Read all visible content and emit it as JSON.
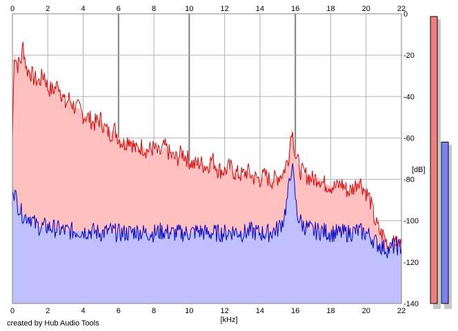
{
  "chart_data": {
    "type": "area",
    "xlabel": "[kHz]",
    "ylabel": "[dB]",
    "xlim": [
      0,
      22
    ],
    "ylim": [
      -140,
      0
    ],
    "x_ticks": [
      0,
      2,
      4,
      6,
      8,
      10,
      12,
      14,
      16,
      18,
      20,
      22
    ],
    "y_ticks": [
      0,
      -20,
      -40,
      -60,
      -80,
      -100,
      -120,
      -140
    ],
    "grid": true,
    "series": [
      {
        "color": "#e00000",
        "fill": "#ffc0c0",
        "x": [
          0,
          0.1,
          0.3,
          0.5,
          0.6,
          0.8,
          1,
          1.2,
          1.5,
          1.8,
          2,
          2.3,
          2.6,
          3,
          3.2,
          3.5,
          3.8,
          4,
          4.3,
          4.6,
          5,
          5.2,
          5.5,
          5.8,
          6,
          6.3,
          6.6,
          7,
          7.3,
          7.6,
          8,
          8.3,
          8.6,
          9,
          9.3,
          9.6,
          10,
          10.3,
          10.6,
          11,
          11.3,
          11.6,
          12,
          12.3,
          12.6,
          13,
          13.3,
          13.6,
          14,
          14.3,
          14.6,
          15,
          15.3,
          15.6,
          15.8,
          16,
          16.3,
          16.6,
          17,
          17.3,
          17.6,
          18,
          18.3,
          18.6,
          19,
          19.3,
          19.6,
          19.9,
          20.2,
          20.5,
          20.8,
          21,
          21.3,
          21.6,
          22
        ],
        "values": [
          -60,
          -19,
          -25,
          -22,
          -15,
          -27,
          -28,
          -31,
          -33,
          -29,
          -36,
          -37,
          -34,
          -44,
          -41,
          -45,
          -46,
          -49,
          -50,
          -53,
          -51,
          -55,
          -58,
          -56,
          -60,
          -63,
          -60,
          -66,
          -64,
          -66,
          -65,
          -68,
          -64,
          -69,
          -70,
          -67,
          -71,
          -73,
          -72,
          -74,
          -70,
          -75,
          -76,
          -74,
          -77,
          -78,
          -76,
          -79,
          -80,
          -78,
          -81,
          -79,
          -77,
          -70,
          -55,
          -68,
          -76,
          -78,
          -80,
          -79,
          -82,
          -83,
          -84,
          -82,
          -86,
          -84,
          -80,
          -85,
          -89,
          -100,
          -106,
          -107,
          -113,
          -111,
          -112
        ]
      },
      {
        "color": "#0000cc",
        "fill": "#c0c0ff",
        "x": [
          0,
          0.1,
          0.3,
          0.5,
          0.7,
          1,
          1.3,
          1.6,
          2,
          2.5,
          3,
          3.5,
          4,
          4.5,
          5,
          5.5,
          6,
          6.5,
          7,
          7.5,
          8,
          8.5,
          9,
          9.5,
          10,
          10.5,
          11,
          11.5,
          12,
          12.5,
          13,
          13.5,
          14,
          14.5,
          15,
          15.3,
          15.5,
          15.7,
          15.8,
          15.9,
          16.1,
          16.4,
          17,
          17.5,
          18,
          18.5,
          19,
          19.5,
          20,
          20.3,
          20.6,
          21,
          21.3,
          21.6,
          22
        ],
        "values": [
          -82,
          -86,
          -92,
          -96,
          -98,
          -98,
          -102,
          -103,
          -103,
          -104,
          -105,
          -105,
          -105,
          -105,
          -106,
          -105,
          -106,
          -106,
          -105,
          -106,
          -106,
          -105,
          -106,
          -106,
          -106,
          -105,
          -106,
          -106,
          -106,
          -105,
          -106,
          -105,
          -106,
          -106,
          -104,
          -100,
          -92,
          -80,
          -72,
          -80,
          -97,
          -102,
          -105,
          -105,
          -106,
          -106,
          -106,
          -105,
          -106,
          -108,
          -111,
          -113,
          -114,
          -112,
          -113
        ]
      }
    ],
    "level_meters": [
      {
        "color": "#f08080",
        "level_db": 0
      },
      {
        "color": "#8080f0",
        "level_db": -62
      }
    ],
    "footer": "created by Hub Audio Tools"
  }
}
